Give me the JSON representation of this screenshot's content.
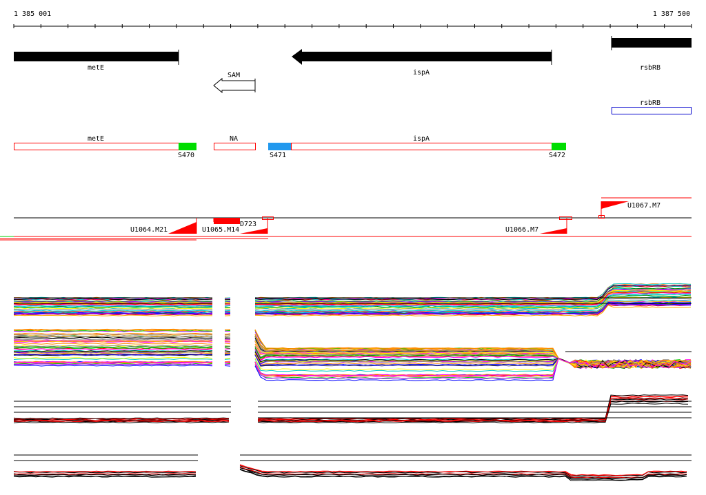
{
  "ruler": {
    "start_label": "1 385 001",
    "end_label": "1 387 500",
    "start": 1385001,
    "end": 1387500
  },
  "genes": [
    {
      "name": "metE",
      "strand": "+",
      "color": "#000000"
    },
    {
      "name": "ispA",
      "strand": "-",
      "color": "#000000"
    },
    {
      "name": "rsbRB",
      "strand": "+",
      "color": "#000000"
    }
  ],
  "riboswitch": {
    "name": "SAM"
  },
  "rsbRB_box": {
    "name": "rsbRB",
    "color": "#0000cc"
  },
  "segments": {
    "labels": [
      "metE",
      "NA",
      "ispA"
    ],
    "tags": [
      "S470",
      "S471",
      "S472"
    ],
    "colors": {
      "outline": "#ff0000",
      "green": "#00dd00",
      "blue": "#2299ee"
    }
  },
  "transcripts": {
    "labels": [
      "U1064.M21",
      "U1065.M14",
      "D723",
      "U1066.M7",
      "U1067.M7"
    ],
    "color": "#ff0000"
  }
}
